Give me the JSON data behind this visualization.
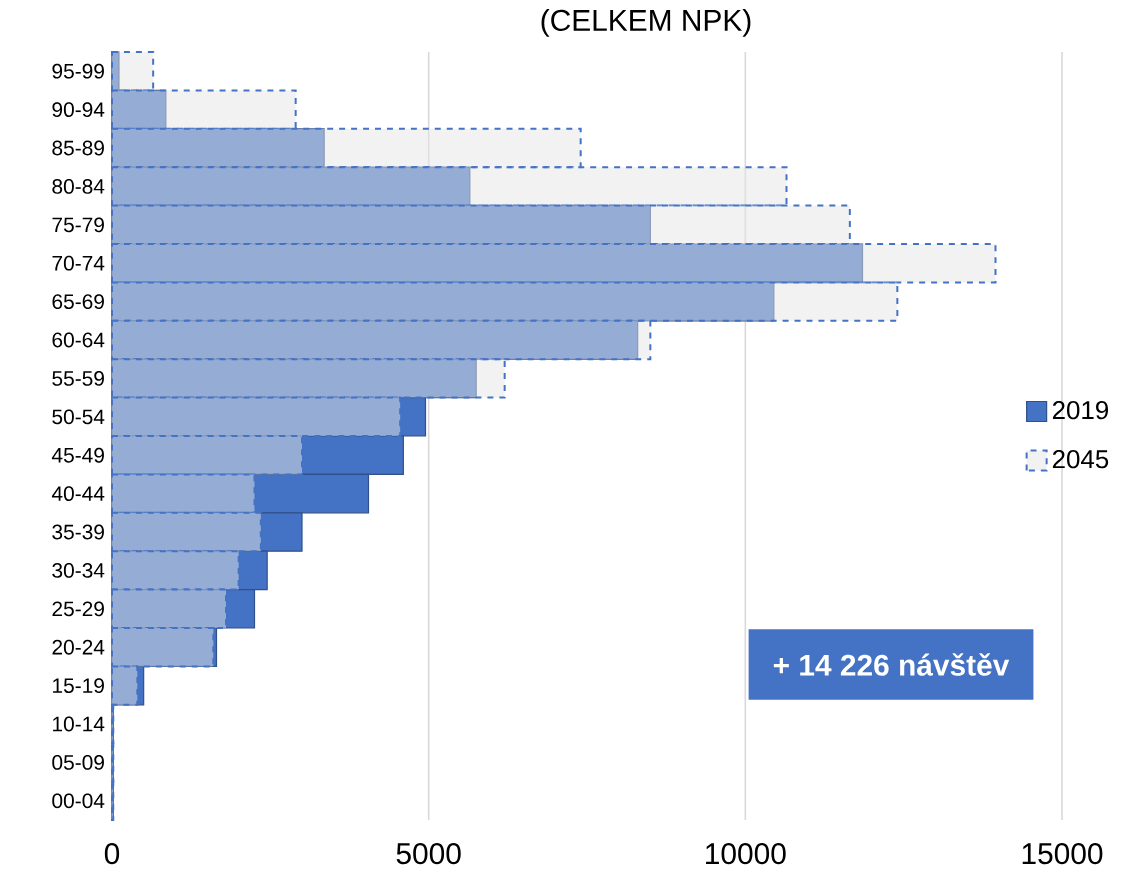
{
  "chart_data": {
    "type": "bar",
    "orientation": "horizontal",
    "title": "(CELKEM NPK)",
    "categories": [
      "95-99",
      "90-94",
      "85-89",
      "80-84",
      "75-79",
      "70-74",
      "65-69",
      "60-64",
      "55-59",
      "50-54",
      "45-49",
      "40-44",
      "35-39",
      "30-34",
      "25-29",
      "20-24",
      "15-19",
      "10-14",
      "05-09",
      "00-04"
    ],
    "series": [
      {
        "name": "2019",
        "color": "#4472c4",
        "values": [
          110,
          850,
          3350,
          5650,
          8500,
          11850,
          10450,
          8300,
          5750,
          4950,
          4600,
          4050,
          3000,
          2450,
          2250,
          1650,
          500,
          20,
          20,
          20
        ]
      },
      {
        "name": "2045",
        "color": "#4472c4",
        "line_style": "dashed",
        "values": [
          650,
          2900,
          7400,
          10650,
          11650,
          13950,
          12400,
          8500,
          6200,
          4550,
          3000,
          2250,
          2350,
          2000,
          1800,
          1600,
          400,
          20,
          20,
          20
        ]
      }
    ],
    "xlim": [
      0,
      15000
    ],
    "xticks": [
      0,
      5000,
      10000,
      15000
    ],
    "grid": "x",
    "legend": "right",
    "annotations": [
      "+ 14 226 návštěv"
    ]
  }
}
